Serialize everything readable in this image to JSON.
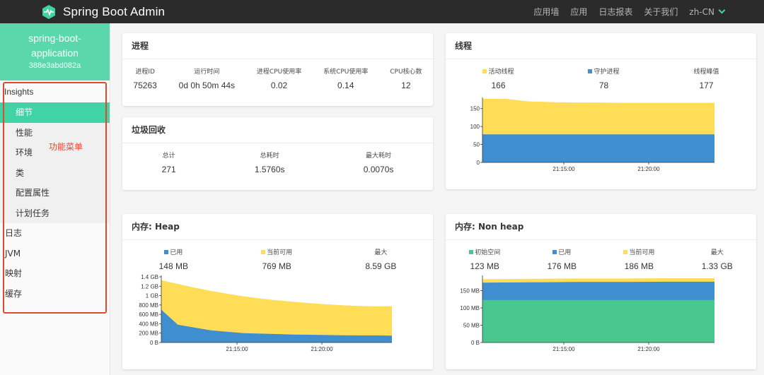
{
  "topbar": {
    "brand": "Spring Boot Admin",
    "nav": [
      "应用墙",
      "应用",
      "日志报表",
      "关于我们"
    ],
    "lang": "zh-CN",
    "accent": "#42d3a5"
  },
  "sidebar": {
    "app_name_line1": "spring-boot-",
    "app_name_line2": "application",
    "app_id": "388e3abd082a",
    "group": "Insights",
    "insights_items": [
      "细节",
      "性能",
      "环境",
      "类",
      "配置属性",
      "计划任务"
    ],
    "active": "细节",
    "other_items": [
      "日志",
      "JVM",
      "映射",
      "缓存"
    ],
    "annotation": "功能菜单"
  },
  "process": {
    "title": "进程",
    "stats": [
      {
        "label": "进程ID",
        "value": "75263"
      },
      {
        "label": "运行时间",
        "value": "0d 0h 50m 44s"
      },
      {
        "label": "进程CPU使用率",
        "value": "0.02"
      },
      {
        "label": "系统CPU使用率",
        "value": "0.14"
      },
      {
        "label": "CPU核心数",
        "value": "12"
      }
    ]
  },
  "gc": {
    "title": "垃圾回收",
    "stats": [
      {
        "label": "总计",
        "value": "271"
      },
      {
        "label": "总耗时",
        "value": "1.5760s"
      },
      {
        "label": "最大耗时",
        "value": "0.0070s"
      }
    ]
  },
  "threads": {
    "title": "线程",
    "stats": [
      {
        "label": "活动线程",
        "value": "166",
        "color": "#ffdd57"
      },
      {
        "label": "守护进程",
        "value": "78",
        "color": "#3e8ed0"
      },
      {
        "label": "线程峰值",
        "value": "177"
      }
    ]
  },
  "heap": {
    "title": "内存: Heap",
    "stats": [
      {
        "label": "已用",
        "value": "148 MB",
        "color": "#3e8ed0"
      },
      {
        "label": "当前可用",
        "value": "769 MB",
        "color": "#ffdd57"
      },
      {
        "label": "最大",
        "value": "8.59 GB"
      }
    ]
  },
  "nonheap": {
    "title": "内存: Non heap",
    "stats": [
      {
        "label": "初始空间",
        "value": "123 MB",
        "color": "#48c78e"
      },
      {
        "label": "已用",
        "value": "176 MB",
        "color": "#3e8ed0"
      },
      {
        "label": "当前可用",
        "value": "186 MB",
        "color": "#ffdd57"
      },
      {
        "label": "最大",
        "value": "1.33 GB"
      }
    ]
  },
  "chart_data": [
    {
      "type": "area",
      "id": "threads",
      "x_ticks": [
        "21:15:00",
        "21:20:00"
      ],
      "y_ticks": [
        "0",
        "50",
        "100",
        "150"
      ],
      "ylim": [
        0,
        177
      ],
      "series": [
        {
          "name": "活动线程",
          "color": "#ffdd57",
          "values": [
            177,
            177,
            170,
            168,
            167,
            167,
            166,
            166,
            166,
            166,
            166
          ]
        },
        {
          "name": "守护进程",
          "color": "#3e8ed0",
          "values": [
            78,
            78,
            78,
            78,
            78,
            78,
            78,
            78,
            78,
            78,
            78
          ]
        }
      ]
    },
    {
      "type": "area",
      "id": "heap",
      "x_ticks": [
        "21:15:00",
        "21:20:00"
      ],
      "y_ticks": [
        "0 B",
        "200 MB",
        "400 MB",
        "600 MB",
        "800 MB",
        "1 GB",
        "1.2 GB",
        "1.4 GB"
      ],
      "ylim_mb": [
        0,
        1400
      ],
      "series": [
        {
          "name": "当前可用",
          "color": "#ffdd57",
          "values_mb": [
            1330,
            1250,
            1170,
            1100,
            1040,
            985,
            940,
            900,
            870,
            840,
            815,
            795,
            780,
            772,
            770
          ]
        },
        {
          "name": "已用",
          "color": "#3e8ed0",
          "values_mb": [
            700,
            380,
            320,
            260,
            230,
            200,
            190,
            180,
            170,
            165,
            160,
            155,
            150,
            150,
            148
          ]
        }
      ]
    },
    {
      "type": "area",
      "id": "nonheap",
      "x_ticks": [
        "21:15:00",
        "21:20:00"
      ],
      "y_ticks": [
        "0 B",
        "50 MB",
        "100 MB",
        "150 MB"
      ],
      "ylim_mb": [
        0,
        190
      ],
      "series": [
        {
          "name": "当前可用",
          "color": "#ffdd57",
          "values_mb": [
            183,
            184,
            185,
            185,
            186,
            186
          ]
        },
        {
          "name": "已用",
          "color": "#3e8ed0",
          "values_mb": [
            173,
            174,
            175,
            175,
            176,
            176
          ]
        },
        {
          "name": "初始空间",
          "color": "#48c78e",
          "values_mb": [
            123,
            123,
            123,
            123,
            123,
            123
          ]
        }
      ]
    }
  ]
}
